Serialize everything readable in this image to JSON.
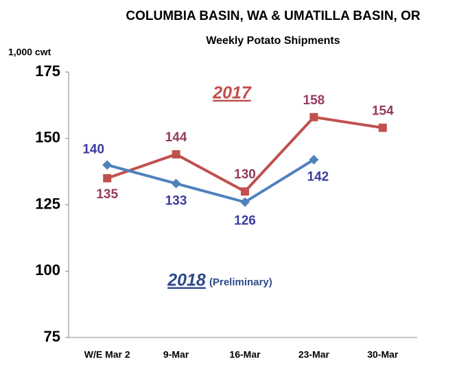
{
  "chart_data": {
    "type": "line",
    "title": "COLUMBIA BASIN, WA & UMATILLA BASIN, OR",
    "subtitle": "Weekly Potato Shipments",
    "y_label": "1,000 cwt",
    "annotation": "(Preliminary)",
    "categories": [
      "W/E Mar 2",
      "9-Mar",
      "16-Mar",
      "23-Mar",
      "30-Mar"
    ],
    "series": [
      {
        "name": "2017",
        "color": "#c0504d",
        "marker": "square",
        "values": [
          135,
          144,
          130,
          158,
          154
        ]
      },
      {
        "name": "2018",
        "color": "#4f81bd",
        "marker": "diamond",
        "values": [
          140,
          133,
          126,
          142,
          null
        ]
      }
    ],
    "ylim": [
      75,
      175
    ],
    "yticks": [
      75,
      100,
      125,
      150,
      175
    ],
    "grid": false
  }
}
